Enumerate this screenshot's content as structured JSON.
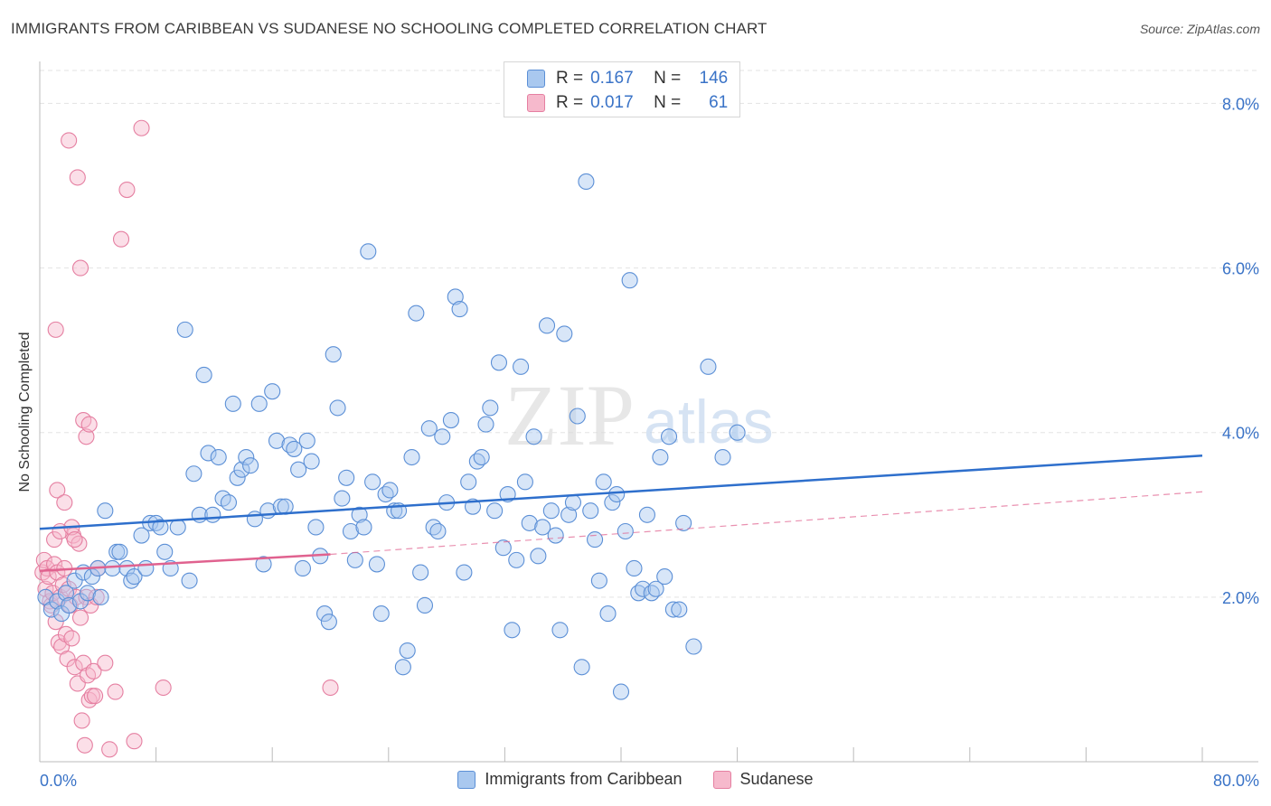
{
  "title": "IMMIGRANTS FROM CARIBBEAN VS SUDANESE NO SCHOOLING COMPLETED CORRELATION CHART",
  "source": "Source: ZipAtlas.com",
  "watermark": "ZIPatlas",
  "legend": {
    "rows": [
      {
        "r_label": "R =",
        "r_value": "0.167",
        "n_label": "N =",
        "n_value": "146"
      },
      {
        "r_label": "R =",
        "r_value": "0.017",
        "n_label": "N =",
        "n_value": "61"
      }
    ]
  },
  "colors": {
    "blue_fill": "#a9c8ef",
    "blue_stroke": "#5b8fd6",
    "blue_line": "#2e6fcc",
    "pink_fill": "#f6b9cc",
    "pink_stroke": "#e57fa1",
    "pink_line": "#e0628f",
    "grid": "#e3e3e3",
    "axis_text": "#3a73c7"
  },
  "chart_data": {
    "type": "scatter",
    "title": "IMMIGRANTS FROM CARIBBEAN VS SUDANESE NO SCHOOLING COMPLETED CORRELATION CHART",
    "xlabel": "",
    "ylabel": "No Schooling Completed",
    "xlim": [
      0,
      80
    ],
    "ylim": [
      0,
      8.4
    ],
    "x_tick_labels": [
      "0.0%",
      "80.0%"
    ],
    "y_ticks": [
      2,
      4,
      6,
      8
    ],
    "y_tick_labels": [
      "2.0%",
      "4.0%",
      "6.0%",
      "8.0%"
    ],
    "grid": true,
    "legend_position": "bottom",
    "series": [
      {
        "name": "Immigrants from Caribbean",
        "R": 0.167,
        "N": 146,
        "trend": {
          "x": [
            0,
            80
          ],
          "y": [
            2.83,
            3.72
          ],
          "style": "solid"
        },
        "points": [
          [
            0.4,
            2.0
          ],
          [
            0.8,
            1.85
          ],
          [
            1.2,
            1.95
          ],
          [
            1.5,
            1.8
          ],
          [
            1.8,
            2.05
          ],
          [
            2.0,
            1.9
          ],
          [
            2.4,
            2.2
          ],
          [
            2.8,
            1.95
          ],
          [
            3.0,
            2.3
          ],
          [
            3.3,
            2.05
          ],
          [
            3.6,
            2.25
          ],
          [
            4.0,
            2.35
          ],
          [
            4.2,
            2.0
          ],
          [
            4.5,
            3.05
          ],
          [
            5.0,
            2.35
          ],
          [
            5.3,
            2.55
          ],
          [
            5.5,
            2.55
          ],
          [
            6.0,
            2.35
          ],
          [
            6.3,
            2.2
          ],
          [
            6.5,
            2.25
          ],
          [
            7.0,
            2.75
          ],
          [
            7.3,
            2.35
          ],
          [
            7.6,
            2.9
          ],
          [
            8.0,
            2.9
          ],
          [
            8.3,
            2.85
          ],
          [
            8.6,
            2.55
          ],
          [
            9.0,
            2.35
          ],
          [
            9.5,
            2.85
          ],
          [
            10.0,
            5.25
          ],
          [
            10.3,
            2.2
          ],
          [
            10.6,
            3.5
          ],
          [
            11.0,
            3.0
          ],
          [
            11.3,
            4.7
          ],
          [
            11.6,
            3.75
          ],
          [
            11.9,
            3.0
          ],
          [
            12.3,
            3.7
          ],
          [
            12.6,
            3.2
          ],
          [
            13.0,
            3.15
          ],
          [
            13.3,
            4.35
          ],
          [
            13.6,
            3.45
          ],
          [
            13.9,
            3.55
          ],
          [
            14.2,
            3.7
          ],
          [
            14.5,
            3.6
          ],
          [
            14.8,
            2.95
          ],
          [
            15.1,
            4.35
          ],
          [
            15.4,
            2.4
          ],
          [
            15.7,
            3.05
          ],
          [
            16.0,
            4.5
          ],
          [
            16.3,
            3.9
          ],
          [
            16.6,
            3.1
          ],
          [
            16.9,
            3.1
          ],
          [
            17.2,
            3.85
          ],
          [
            17.5,
            3.8
          ],
          [
            17.8,
            3.55
          ],
          [
            18.1,
            2.35
          ],
          [
            18.4,
            3.9
          ],
          [
            18.7,
            3.65
          ],
          [
            19.0,
            2.85
          ],
          [
            19.3,
            2.5
          ],
          [
            19.6,
            1.8
          ],
          [
            19.9,
            1.7
          ],
          [
            20.2,
            4.95
          ],
          [
            20.5,
            4.3
          ],
          [
            20.8,
            3.2
          ],
          [
            21.1,
            3.45
          ],
          [
            21.4,
            2.8
          ],
          [
            21.7,
            2.45
          ],
          [
            22.0,
            3.0
          ],
          [
            22.3,
            2.85
          ],
          [
            22.6,
            6.2
          ],
          [
            22.9,
            3.4
          ],
          [
            23.2,
            2.4
          ],
          [
            23.5,
            1.8
          ],
          [
            23.8,
            3.25
          ],
          [
            24.1,
            3.3
          ],
          [
            24.4,
            3.05
          ],
          [
            24.7,
            3.05
          ],
          [
            25.0,
            1.15
          ],
          [
            25.3,
            1.35
          ],
          [
            25.6,
            3.7
          ],
          [
            25.9,
            5.45
          ],
          [
            26.2,
            2.3
          ],
          [
            26.5,
            1.9
          ],
          [
            26.8,
            4.05
          ],
          [
            27.1,
            2.85
          ],
          [
            27.4,
            2.8
          ],
          [
            27.7,
            3.95
          ],
          [
            28.0,
            3.15
          ],
          [
            28.3,
            4.15
          ],
          [
            28.6,
            5.65
          ],
          [
            28.9,
            5.5
          ],
          [
            29.2,
            2.3
          ],
          [
            29.5,
            3.4
          ],
          [
            29.8,
            3.1
          ],
          [
            30.1,
            3.65
          ],
          [
            30.4,
            3.7
          ],
          [
            30.7,
            4.1
          ],
          [
            31.0,
            4.3
          ],
          [
            31.3,
            3.05
          ],
          [
            31.6,
            4.85
          ],
          [
            31.9,
            2.6
          ],
          [
            32.2,
            3.25
          ],
          [
            32.5,
            1.6
          ],
          [
            32.8,
            2.45
          ],
          [
            33.1,
            4.8
          ],
          [
            33.4,
            3.4
          ],
          [
            33.7,
            2.9
          ],
          [
            34.0,
            3.95
          ],
          [
            34.3,
            2.5
          ],
          [
            34.6,
            2.85
          ],
          [
            34.9,
            5.3
          ],
          [
            35.2,
            3.05
          ],
          [
            35.5,
            2.75
          ],
          [
            35.8,
            1.6
          ],
          [
            36.1,
            5.2
          ],
          [
            36.4,
            3.0
          ],
          [
            36.7,
            3.15
          ],
          [
            37.0,
            4.2
          ],
          [
            37.3,
            1.15
          ],
          [
            37.6,
            7.05
          ],
          [
            37.9,
            3.05
          ],
          [
            38.2,
            2.7
          ],
          [
            38.5,
            2.2
          ],
          [
            38.8,
            3.4
          ],
          [
            39.1,
            1.8
          ],
          [
            39.4,
            3.15
          ],
          [
            39.7,
            3.25
          ],
          [
            40.0,
            0.85
          ],
          [
            40.3,
            2.8
          ],
          [
            40.6,
            5.85
          ],
          [
            40.9,
            2.35
          ],
          [
            41.2,
            2.05
          ],
          [
            41.5,
            2.1
          ],
          [
            41.8,
            3.0
          ],
          [
            42.1,
            2.05
          ],
          [
            42.4,
            2.1
          ],
          [
            42.7,
            3.7
          ],
          [
            43.0,
            2.25
          ],
          [
            43.3,
            3.95
          ],
          [
            43.6,
            1.85
          ],
          [
            44.0,
            1.85
          ],
          [
            44.3,
            2.9
          ],
          [
            45.0,
            1.4
          ],
          [
            46.0,
            4.8
          ],
          [
            47.0,
            3.7
          ],
          [
            48.0,
            4.0
          ]
        ]
      },
      {
        "name": "Sudanese",
        "R": 0.017,
        "N": 61,
        "trend": {
          "x": [
            0,
            20
          ],
          "y": [
            2.32,
            2.52
          ],
          "style": "solid",
          "dashed_extension_to": [
            80,
            3.28
          ]
        },
        "points": [
          [
            0.2,
            2.3
          ],
          [
            0.3,
            2.45
          ],
          [
            0.4,
            2.1
          ],
          [
            0.5,
            2.35
          ],
          [
            0.6,
            2.25
          ],
          [
            0.7,
            1.95
          ],
          [
            0.8,
            1.9
          ],
          [
            0.9,
            2.05
          ],
          [
            1.0,
            2.4
          ],
          [
            1.1,
            1.7
          ],
          [
            1.2,
            2.3
          ],
          [
            1.3,
            1.45
          ],
          [
            1.4,
            2.0
          ],
          [
            1.5,
            1.4
          ],
          [
            1.6,
            2.15
          ],
          [
            1.7,
            2.35
          ],
          [
            1.8,
            1.55
          ],
          [
            1.9,
            1.25
          ],
          [
            2.0,
            2.1
          ],
          [
            2.1,
            1.9
          ],
          [
            2.2,
            1.5
          ],
          [
            2.3,
            2.75
          ],
          [
            2.4,
            1.15
          ],
          [
            2.5,
            2.0
          ],
          [
            2.6,
            0.95
          ],
          [
            2.7,
            2.65
          ],
          [
            2.8,
            1.75
          ],
          [
            2.9,
            0.5
          ],
          [
            3.0,
            1.2
          ],
          [
            3.1,
            0.2
          ],
          [
            3.2,
            2.0
          ],
          [
            3.3,
            1.05
          ],
          [
            3.4,
            0.75
          ],
          [
            3.5,
            1.9
          ],
          [
            3.6,
            0.8
          ],
          [
            3.7,
            1.1
          ],
          [
            3.8,
            0.8
          ],
          [
            3.9,
            2.0
          ],
          [
            4.0,
            2.35
          ],
          [
            1.0,
            2.7
          ],
          [
            1.1,
            5.25
          ],
          [
            1.2,
            3.3
          ],
          [
            1.4,
            2.8
          ],
          [
            1.7,
            3.15
          ],
          [
            2.0,
            7.55
          ],
          [
            2.2,
            2.85
          ],
          [
            2.4,
            2.7
          ],
          [
            2.6,
            7.1
          ],
          [
            2.8,
            6.0
          ],
          [
            3.0,
            4.15
          ],
          [
            3.2,
            3.95
          ],
          [
            3.4,
            4.1
          ],
          [
            4.5,
            1.2
          ],
          [
            4.8,
            0.15
          ],
          [
            5.2,
            0.85
          ],
          [
            5.6,
            6.35
          ],
          [
            6.0,
            6.95
          ],
          [
            6.5,
            0.25
          ],
          [
            7.0,
            7.7
          ],
          [
            8.5,
            0.9
          ],
          [
            20.0,
            0.9
          ]
        ]
      }
    ]
  }
}
